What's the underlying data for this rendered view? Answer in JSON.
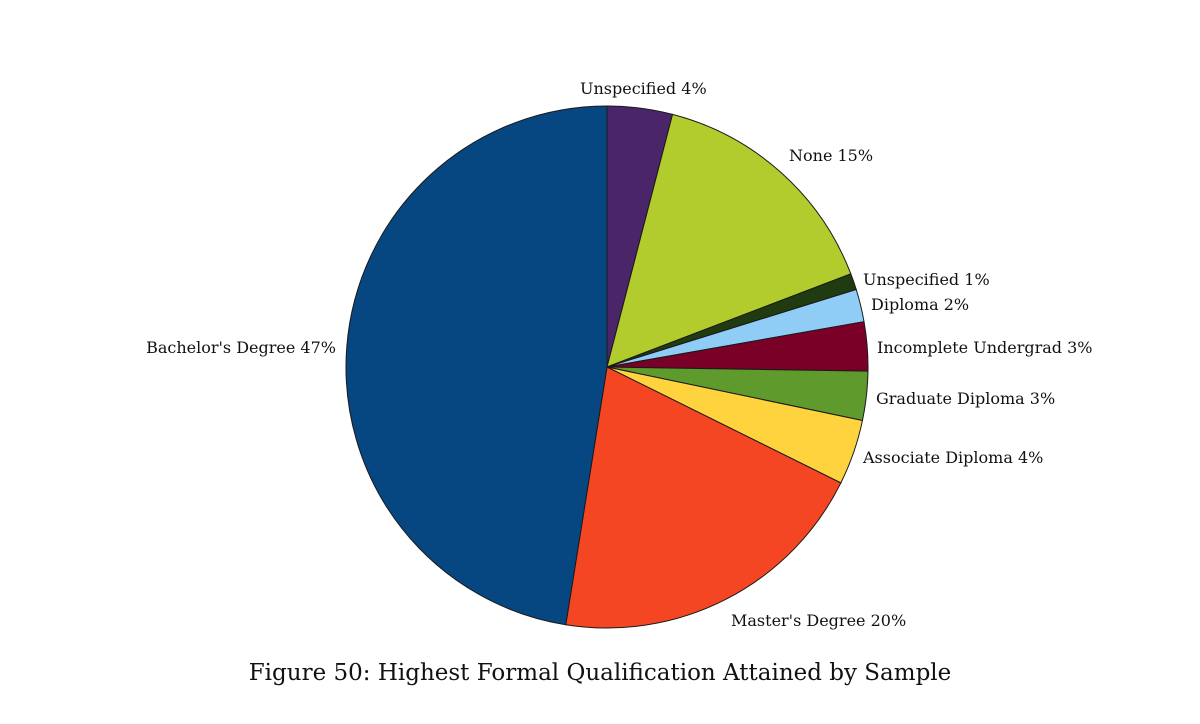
{
  "caption": "Figure 50: Highest Formal Qualification Attained by Sample",
  "chart_data": {
    "type": "pie",
    "title": "",
    "start_angle_deg": 0,
    "direction": "clockwise",
    "slices": [
      {
        "label": "Unspecified",
        "value": 4,
        "text": "Unspecified 4%",
        "color": "#4a2569"
      },
      {
        "label": "None",
        "value": 15,
        "text": "None 15%",
        "color": "#b2cc2e"
      },
      {
        "label": "Unspecified",
        "value": 1,
        "text": "Unspecified 1%",
        "color": "#203b10"
      },
      {
        "label": "Diploma",
        "value": 2,
        "text": "Diploma 2%",
        "color": "#8fcdf7"
      },
      {
        "label": "Incomplete Undergrad",
        "value": 3,
        "text": "Incomplete Undergrad 3%",
        "color": "#7a0027"
      },
      {
        "label": "Graduate Diploma",
        "value": 3,
        "text": "Graduate Diploma 3%",
        "color": "#5f9b2c"
      },
      {
        "label": "Associate Diploma",
        "value": 4,
        "text": "Associate Diploma 4%",
        "color": "#fed33d"
      },
      {
        "label": "Master's Degree",
        "value": 20,
        "text": "Master's Degree 20%",
        "color": "#f54623"
      },
      {
        "label": "Bachelor's Degree",
        "value": 47,
        "text": "Bachelor's Degree 47%",
        "color": "#064681"
      }
    ]
  }
}
